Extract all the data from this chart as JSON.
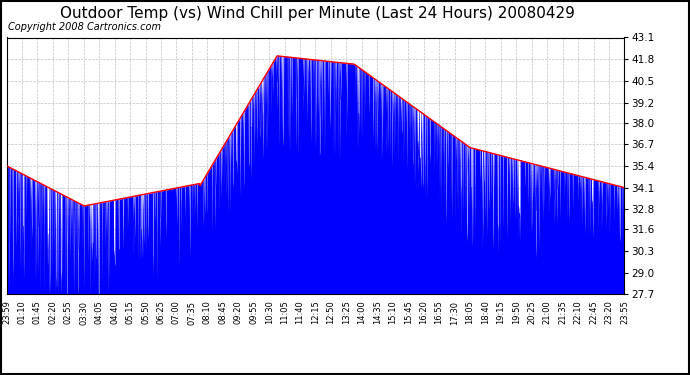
{
  "title": "Outdoor Temp (vs) Wind Chill per Minute (Last 24 Hours) 20080429",
  "copyright": "Copyright 2008 Cartronics.com",
  "ylim": [
    27.7,
    43.1
  ],
  "yticks": [
    27.7,
    29.0,
    30.3,
    31.6,
    32.8,
    34.1,
    35.4,
    36.7,
    38.0,
    39.2,
    40.5,
    41.8,
    43.1
  ],
  "xtick_labels": [
    "23:59",
    "01:10",
    "01:45",
    "02:20",
    "02:55",
    "03:30",
    "04:05",
    "04:40",
    "05:15",
    "05:50",
    "06:25",
    "07:00",
    "07:35",
    "08:10",
    "08:45",
    "09:20",
    "09:55",
    "10:30",
    "11:05",
    "11:40",
    "12:15",
    "12:50",
    "13:25",
    "14:00",
    "14:35",
    "15:10",
    "15:45",
    "16:20",
    "16:55",
    "17:30",
    "18:05",
    "18:40",
    "19:15",
    "19:50",
    "20:25",
    "21:00",
    "21:35",
    "22:10",
    "22:45",
    "23:20",
    "23:55"
  ],
  "background_color": "#ffffff",
  "grid_color": "#c0c0c0",
  "title_fontsize": 11,
  "copyright_fontsize": 7
}
